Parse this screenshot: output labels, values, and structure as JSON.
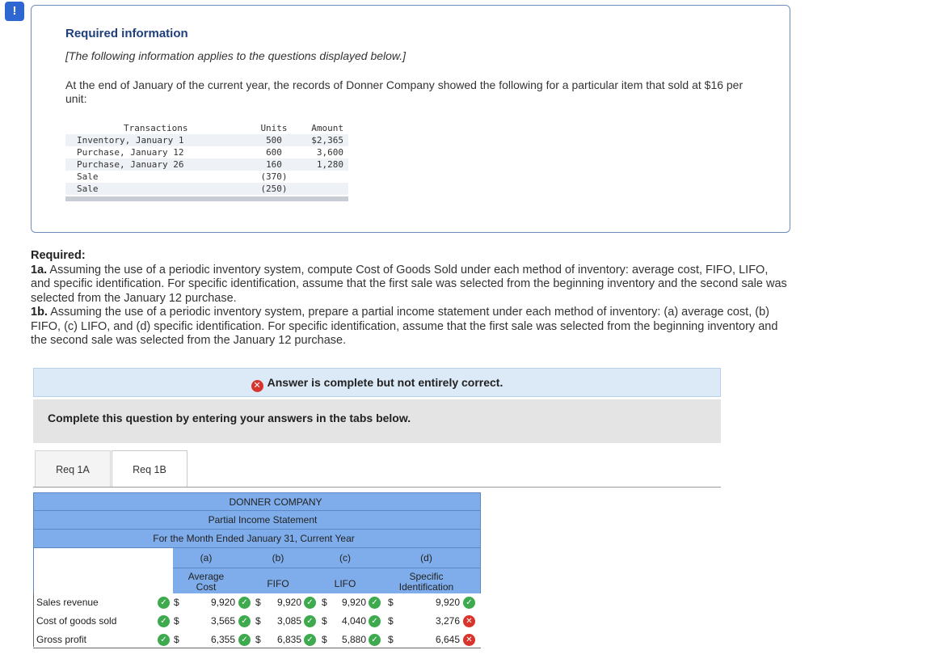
{
  "alert_badge": "!",
  "info": {
    "title": "Required information",
    "subtitle": "[The following information applies to the questions displayed below.]",
    "intro": "At the end of January of the current year, the records of Donner Company showed the following for a particular item that sold at $16 per unit:",
    "table": {
      "headers": {
        "transactions": "Transactions",
        "units": "Units",
        "amount": "Amount"
      },
      "rows": [
        {
          "name": "Inventory, January 1",
          "units": "500",
          "amount": "$2,365"
        },
        {
          "name": "Purchase, January 12",
          "units": "600",
          "amount": "3,600"
        },
        {
          "name": "Purchase, January 26",
          "units": "160",
          "amount": "1,280"
        },
        {
          "name": "Sale",
          "units": "(370)",
          "amount": ""
        },
        {
          "name": "Sale",
          "units": "(250)",
          "amount": ""
        }
      ]
    }
  },
  "required": {
    "heading": "Required:",
    "a_label": "1a.",
    "a_text": "Assuming the use of a periodic inventory system, compute Cost of Goods Sold under each method of inventory: average cost, FIFO, LIFO, and specific identification. For specific identification, assume that the first sale was selected from the beginning inventory and the second sale was selected from the January 12 purchase.",
    "b_label": "1b.",
    "b_text": "Assuming the use of a periodic inventory system, prepare a partial income statement under each method of inventory: (a) average cost, (b) FIFO, (c) LIFO, and (d) specific identification. For specific identification, assume that the first sale was selected from the beginning inventory and the second sale was selected from the January 12 purchase."
  },
  "banner": {
    "icon": "x-circle-icon",
    "text": "Answer is complete but not entirely correct."
  },
  "instructions": "Complete this question by entering your answers in the tabs below.",
  "tabs": [
    {
      "label": "Req 1A"
    },
    {
      "label": "Req 1B"
    }
  ],
  "statement": {
    "company": "DONNER COMPANY",
    "title": "Partial Income Statement",
    "period": "For the Month Ended January 31, Current Year",
    "columns": [
      {
        "letter": "(a)",
        "name_line1": "Average",
        "name_line2": "Cost"
      },
      {
        "letter": "(b)",
        "name_line1": "FIFO",
        "name_line2": ""
      },
      {
        "letter": "(c)",
        "name_line1": "LIFO",
        "name_line2": ""
      },
      {
        "letter": "(d)",
        "name_line1": "Specific",
        "name_line2": "Identification"
      }
    ],
    "rows": [
      {
        "label": "Sales revenue",
        "values": [
          "9,920",
          "9,920",
          "9,920",
          "9,920"
        ],
        "status": [
          "correct",
          "correct",
          "correct",
          "correct",
          "correct"
        ]
      },
      {
        "label": "Cost of goods sold",
        "values": [
          "3,565",
          "3,085",
          "4,040",
          "3,276"
        ],
        "status": [
          "correct",
          "correct",
          "correct",
          "correct",
          "incorrect"
        ]
      },
      {
        "label": "Gross profit",
        "values": [
          "6,355",
          "6,835",
          "5,880",
          "6,645"
        ],
        "status": [
          "correct",
          "correct",
          "correct",
          "correct",
          "incorrect"
        ]
      }
    ],
    "currency_symbol": "$",
    "colors": {
      "header_blue": "#7fadeb",
      "correct_green": "#3eaa4e",
      "incorrect_red": "#d9342b"
    }
  }
}
